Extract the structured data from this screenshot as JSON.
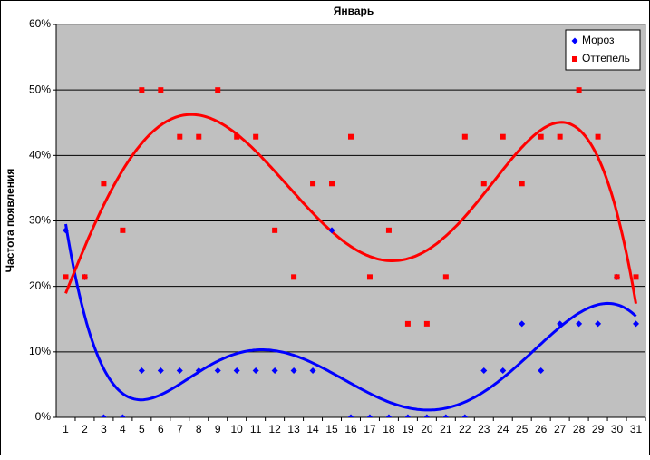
{
  "chart_data": {
    "type": "scatter",
    "title": "Январь",
    "y_label": "Частота появления",
    "categories": [
      "1",
      "2",
      "3",
      "4",
      "5",
      "6",
      "7",
      "8",
      "9",
      "10",
      "11",
      "12",
      "13",
      "14",
      "15",
      "16",
      "17",
      "18",
      "19",
      "20",
      "21",
      "22",
      "23",
      "24",
      "25",
      "26",
      "27",
      "28",
      "29",
      "30",
      "31"
    ],
    "series": [
      {
        "name": "Мороз",
        "color": "#0000ff",
        "marker": "diamond",
        "values": [
          28.57,
          21.43,
          0,
          0,
          7.14,
          7.14,
          7.14,
          7.14,
          7.14,
          7.14,
          7.14,
          7.14,
          7.14,
          7.14,
          28.57,
          0,
          0,
          0,
          0,
          0,
          0,
          0,
          7.14,
          7.14,
          14.29,
          7.14,
          14.29,
          14.29,
          14.29,
          21.43,
          14.29
        ]
      },
      {
        "name": "Оттепель",
        "color": "#ff0000",
        "marker": "square",
        "values": [
          21.43,
          21.43,
          35.71,
          28.57,
          50,
          50,
          42.86,
          42.86,
          50,
          42.86,
          42.86,
          28.57,
          21.43,
          35.71,
          35.71,
          42.86,
          21.43,
          28.57,
          14.29,
          14.29,
          21.43,
          42.86,
          35.71,
          42.86,
          35.71,
          42.86,
          42.86,
          50,
          42.86,
          21.43,
          21.43
        ]
      }
    ],
    "trendline_degree": 6,
    "ylim": [
      0,
      60
    ],
    "yticks": [
      {
        "value": 0,
        "label": "0%"
      },
      {
        "value": 10,
        "label": "10%"
      },
      {
        "value": 20,
        "label": "20%"
      },
      {
        "value": 30,
        "label": "30%"
      },
      {
        "value": 40,
        "label": "40%"
      },
      {
        "value": 50,
        "label": "50%"
      },
      {
        "value": 60,
        "label": "60%"
      }
    ],
    "grid": true,
    "legend": "top-right"
  }
}
